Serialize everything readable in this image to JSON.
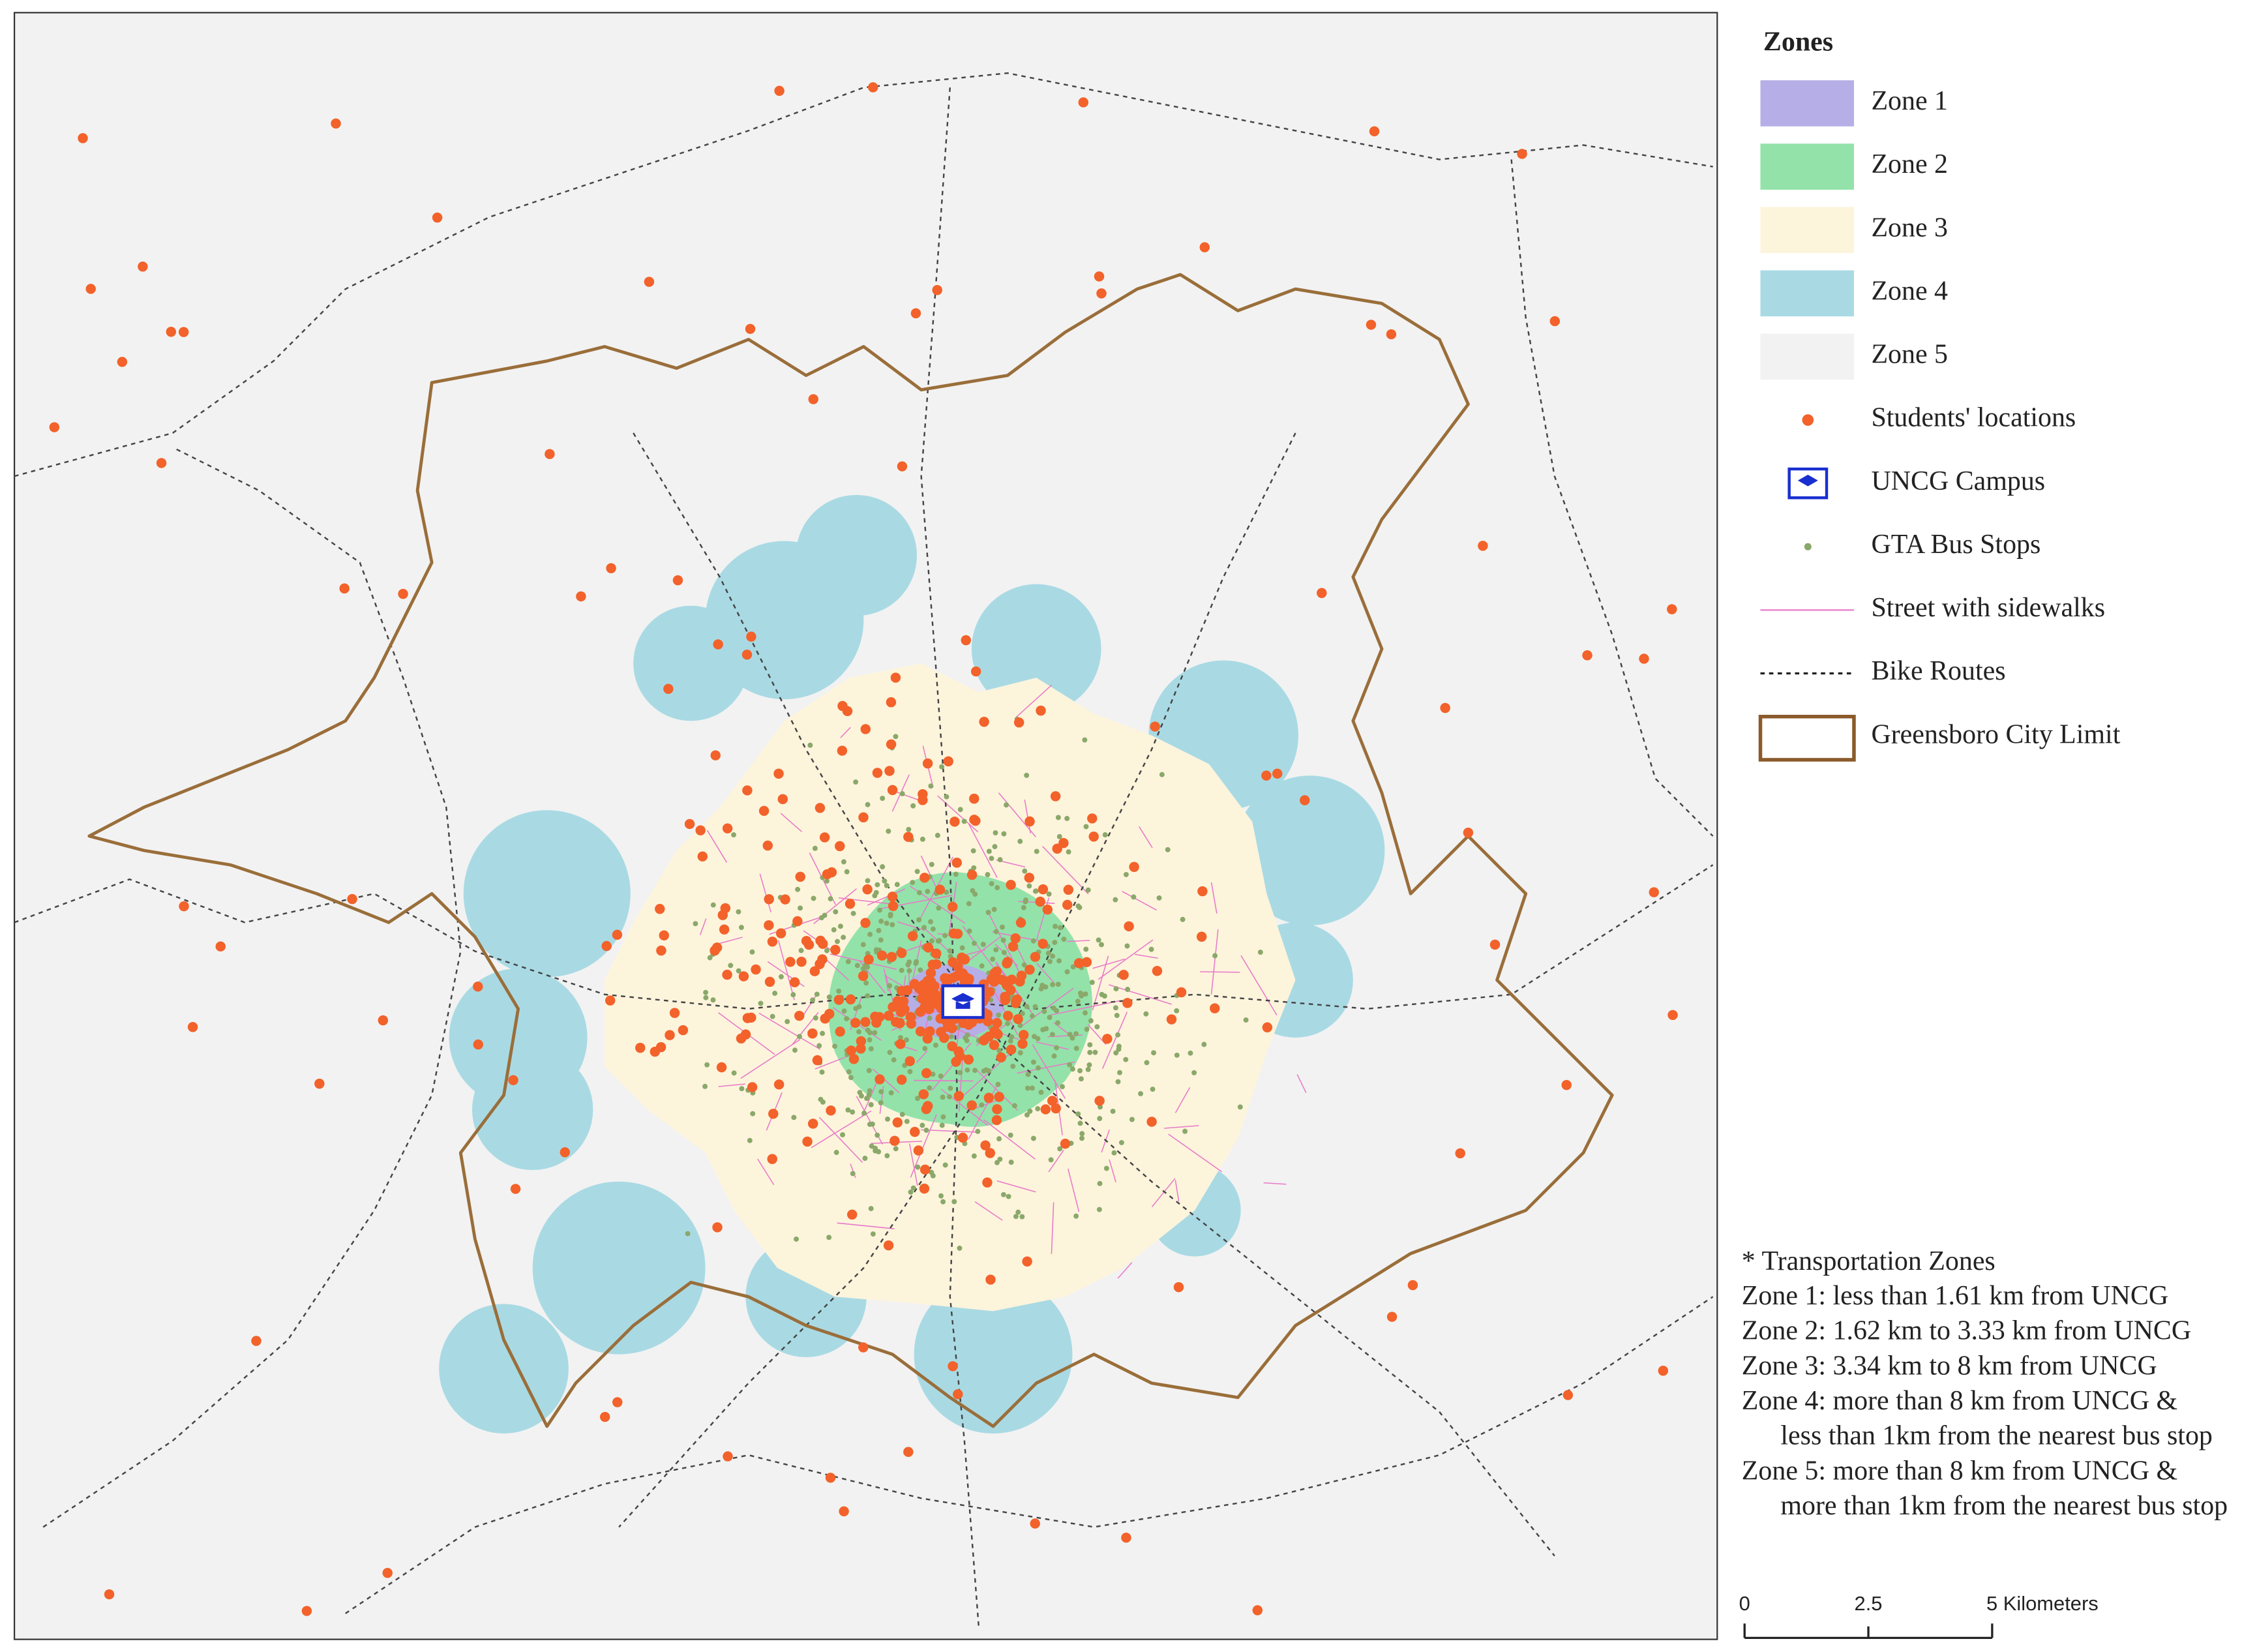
{
  "legend": {
    "title": "Zones",
    "items": [
      {
        "label": "Zone 1"
      },
      {
        "label": "Zone 2"
      },
      {
        "label": "Zone 3"
      },
      {
        "label": "Zone 4"
      },
      {
        "label": "Zone 5"
      },
      {
        "label": "Students' locations"
      },
      {
        "label": "UNCG Campus"
      },
      {
        "label": "GTA Bus Stops"
      },
      {
        "label": "Street with sidewalks"
      },
      {
        "label": "Bike Routes"
      },
      {
        "label": "Greensboro City Limit"
      }
    ]
  },
  "notes": {
    "title": "* Transportation Zones",
    "lines": [
      "Zone 1: less than 1.61 km from UNCG",
      "Zone 2: 1.62 km to 3.33 km from UNCG",
      "Zone 3: 3.34 km to 8 km from UNCG",
      "Zone 4: more than 8 km from UNCG &",
      "less than 1km from the nearest bus stop",
      "Zone 5: more than 8 km from UNCG &",
      "more than 1km from the nearest bus stop"
    ]
  },
  "scale_bar": {
    "labels": [
      "0",
      "2.5",
      "5 Kilometers"
    ]
  }
}
